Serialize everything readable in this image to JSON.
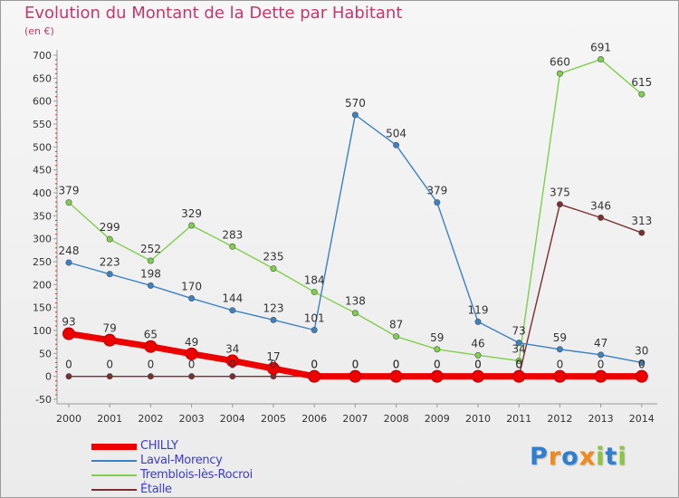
{
  "header": {
    "title": "Evolution du Montant de la Dette par Habitant",
    "subtitle": "(en €)"
  },
  "logo": {
    "letters": [
      "P",
      "r",
      "o",
      "x",
      "i",
      "t",
      "i"
    ],
    "colors": [
      "#2f7fcf",
      "#f28a1c",
      "#2f7fcf",
      "#f28a1c",
      "#8cc63f",
      "#2f7fcf",
      "#8cc63f"
    ]
  },
  "chart_data": {
    "type": "line",
    "title": "Evolution du Montant de la Dette par Habitant",
    "subtitle": "(en €)",
    "xlabel": "",
    "ylabel": "",
    "x": [
      "2000",
      "2001",
      "2002",
      "2003",
      "2004",
      "2005",
      "2006",
      "2007",
      "2008",
      "2009",
      "2010",
      "2011",
      "2012",
      "2013",
      "2014"
    ],
    "ylim": [
      -50,
      700
    ],
    "yticks": [
      -50,
      0,
      50,
      100,
      150,
      200,
      250,
      300,
      350,
      400,
      450,
      500,
      550,
      600,
      650,
      700
    ],
    "grid": false,
    "legend_position": "bottom-left",
    "series": [
      {
        "name": "CHILLY",
        "color": "#ee0000",
        "values": [
          93,
          79,
          65,
          49,
          34,
          17,
          0,
          0,
          0,
          0,
          0,
          0,
          0,
          0,
          0
        ],
        "labels": [
          "93",
          "79",
          "65",
          "49",
          "34",
          "17",
          "0",
          "0",
          "0",
          "0",
          "0",
          "0",
          "0",
          "0",
          "0"
        ]
      },
      {
        "name": "Laval-Morency",
        "color": "#3a82c4",
        "values": [
          248,
          223,
          198,
          170,
          144,
          123,
          101,
          570,
          504,
          379,
          119,
          73,
          59,
          47,
          30
        ],
        "labels": [
          "248",
          "223",
          "198",
          "170",
          "144",
          "123",
          "101",
          "570",
          "504",
          "379",
          "119",
          "73",
          "59",
          "47",
          "30"
        ]
      },
      {
        "name": "Tremblois-lès-Rocroi",
        "color": "#7ecf4b",
        "values": [
          379,
          299,
          252,
          329,
          283,
          235,
          184,
          138,
          87,
          59,
          46,
          34,
          660,
          691,
          615
        ],
        "labels": [
          "379",
          "299",
          "252",
          "329",
          "283",
          "235",
          "184",
          "138",
          "87",
          "59",
          "46",
          "34",
          "660",
          "691",
          "615"
        ]
      },
      {
        "name": "Étalle",
        "color": "#7a2e2e",
        "values": [
          0,
          0,
          0,
          0,
          0,
          0,
          0,
          0,
          0,
          0,
          0,
          0,
          375,
          346,
          313
        ],
        "labels": [
          "0",
          "0",
          "0",
          "0",
          "0",
          "0",
          "0",
          "0",
          "0",
          "0",
          "0",
          "0",
          "375",
          "346",
          "313"
        ]
      }
    ]
  }
}
